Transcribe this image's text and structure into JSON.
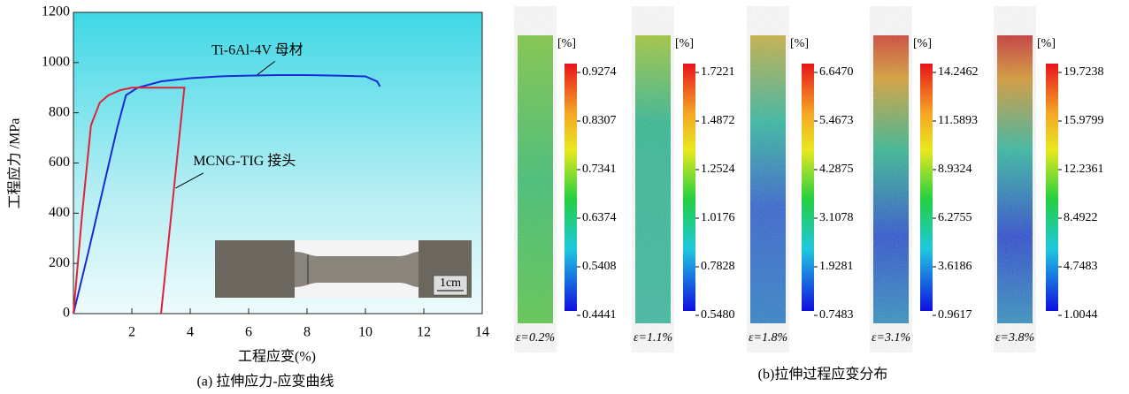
{
  "chart_data": {
    "type": "line",
    "xlabel": "工程应变(%)",
    "ylabel": "工程应力 /MPa",
    "caption": "(a) 拉伸应力-应变曲线",
    "xlim": [
      0,
      14
    ],
    "xticks": [
      2,
      4,
      6,
      8,
      10,
      12,
      14
    ],
    "ylim": [
      0,
      1200
    ],
    "yticks": [
      0,
      200,
      400,
      600,
      800,
      1000,
      1200
    ],
    "series": [
      {
        "name": "Ti-6Al-4V 母材",
        "color": "#1a2bd6",
        "x": [
          0,
          0.5,
          1,
          1.5,
          1.8,
          2.2,
          3,
          4,
          5,
          6,
          7,
          8,
          9,
          10,
          10.4,
          10.5
        ],
        "values": [
          0,
          240,
          490,
          740,
          870,
          900,
          925,
          938,
          945,
          948,
          950,
          950,
          948,
          945,
          925,
          905
        ]
      },
      {
        "name": "MCNG-TIG 接头",
        "color": "#e0223a",
        "x": [
          0,
          0.3,
          0.6,
          0.9,
          1.2,
          1.6,
          2,
          2.5,
          3,
          3.5,
          3.8,
          3.0
        ],
        "values": [
          0,
          400,
          750,
          840,
          870,
          890,
          900,
          900,
          900,
          900,
          900,
          0
        ]
      }
    ],
    "inset_scale": "1cm"
  },
  "strain_maps": {
    "caption": "(b)拉伸过程应变分布",
    "unit": "[%]",
    "panels": [
      {
        "label": "ε=0.2%",
        "ticks": [
          "0.9274",
          "0.8307",
          "0.7341",
          "0.6374",
          "0.5408",
          "0.4441"
        ]
      },
      {
        "label": "ε=1.1%",
        "ticks": [
          "1.7221",
          "1.4872",
          "1.2524",
          "1.0176",
          "0.7828",
          "0.5480"
        ]
      },
      {
        "label": "ε=1.8%",
        "ticks": [
          "6.6470",
          "5.4673",
          "4.2875",
          "3.1078",
          "1.9281",
          "0.7483"
        ]
      },
      {
        "label": "ε=3.1%",
        "ticks": [
          "14.2462",
          "11.5893",
          "8.9324",
          "6.2755",
          "3.6186",
          "0.9617"
        ]
      },
      {
        "label": "ε=3.8%",
        "ticks": [
          "19.7238",
          "15.9799",
          "12.2361",
          "8.4922",
          "4.7483",
          "1.0044"
        ]
      }
    ]
  }
}
